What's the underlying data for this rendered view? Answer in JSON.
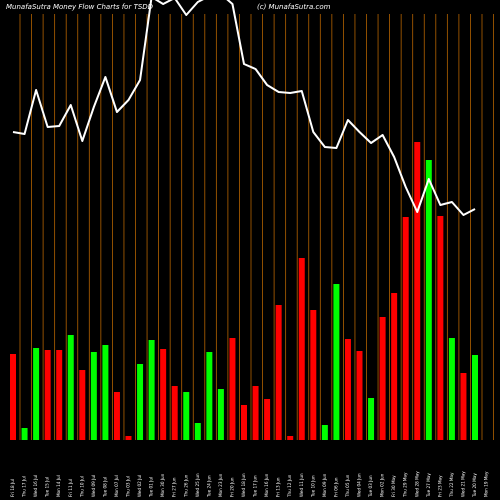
{
  "header": {
    "left": "MunafaSutra  Money Flow  Charts for TSDD",
    "right": "(c) MunafaSutra.com"
  },
  "chart_data": {
    "type": "bar",
    "title": "MunafaSutra  Money Flow  Charts for TSDD",
    "grid": "vertical lines (orange), on",
    "colors": {
      "up": "#00ff00",
      "down": "#ff0000",
      "price_line": "#ffffff",
      "grid": "#b36200",
      "background": "#000000"
    },
    "categories": [
      "Fri 18 Jul",
      "Thu 17 Jul",
      "Wed 16 Jul",
      "Tue 15 Jul",
      "Mon 14 Jul",
      "Fri 11 Jul",
      "Thu 10 Jul",
      "Wed 09 Jul",
      "Tue 08 Jul",
      "Mon 07 Jul",
      "Thu 03 Jul",
      "Wed 02 Jul",
      "Tue 01 Jul",
      "Mon 30 Jun",
      "Fri 27 Jun",
      "Thu 26 Jun",
      "Wed 25 Jun",
      "Tue 24 Jun",
      "Mon 23 Jun",
      "Fri 20 Jun",
      "Wed 18 Jun",
      "Tue 17 Jun",
      "Mon 16 Jun",
      "Fri 13 Jun",
      "Thu 12 Jun",
      "Wed 11 Jun",
      "Tue 10 Jun",
      "Mon 09 Jun",
      "Fri 06 Jun",
      "Thu 05 Jun",
      "Wed 04 Jun",
      "Tue 03 Jun",
      "Mon 02 Jun",
      "Fri 30 May",
      "Thu 29 May",
      "Wed 28 May",
      "Tue 27 May",
      "Fri 23 May",
      "Thu 22 May",
      "Wed 21 May",
      "Tue 20 May",
      "Mon 19 May"
    ],
    "bar_values": [
      86,
      12,
      92,
      90,
      90,
      105,
      70,
      88,
      95,
      48,
      4,
      76,
      100,
      91,
      54,
      48,
      17,
      88,
      51,
      102,
      35,
      54,
      41,
      135,
      4,
      182,
      130,
      15,
      156,
      101,
      89,
      42,
      123,
      147,
      223,
      298,
      280,
      224,
      102,
      67,
      85,
      0
    ],
    "bar_directions": [
      "down",
      "up",
      "up",
      "down",
      "down",
      "up",
      "down",
      "up",
      "up",
      "down",
      "down",
      "up",
      "up",
      "down",
      "down",
      "up",
      "up",
      "up",
      "up",
      "down",
      "down",
      "down",
      "down",
      "down",
      "down",
      "down",
      "down",
      "up",
      "up",
      "down",
      "down",
      "up",
      "down",
      "down",
      "down",
      "down",
      "up",
      "down",
      "up",
      "down",
      "up",
      "up"
    ],
    "price_line": [
      330,
      328,
      372,
      335,
      336,
      357,
      321,
      355,
      385,
      350,
      362,
      382,
      465,
      458,
      464,
      447,
      460,
      466,
      468,
      458,
      398,
      393,
      377,
      370,
      369,
      371,
      330,
      315,
      314,
      342,
      330,
      319,
      327,
      305,
      275,
      250,
      283,
      257,
      260,
      247,
      253,
      0
    ]
  }
}
